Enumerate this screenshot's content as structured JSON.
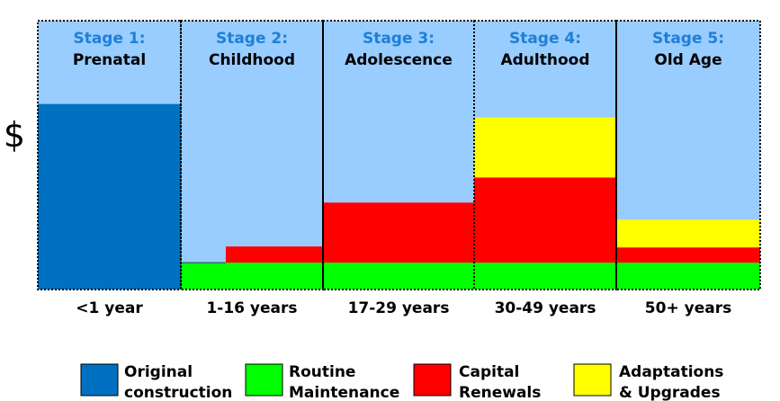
{
  "chart_data": {
    "type": "bar",
    "ylabel": "$",
    "stages": [
      {
        "number_label": "Stage 1:",
        "name": "Prenatal",
        "tick": "<1 year"
      },
      {
        "number_label": "Stage 2:",
        "name": "Childhood",
        "tick": "1-16 years"
      },
      {
        "number_label": "Stage 3:",
        "name": "Adolescence",
        "tick": "17-29 years"
      },
      {
        "number_label": "Stage 4:",
        "name": "Adulthood",
        "tick": "30-49 years"
      },
      {
        "number_label": "Stage 5:",
        "name": "Old Age",
        "tick": "50+ years"
      }
    ],
    "series": [
      {
        "name": "Original construction",
        "color": "#0070c0",
        "values": [
          207,
          0,
          0,
          0,
          0
        ]
      },
      {
        "name": "Routine Maintenance",
        "color": "#00ff00",
        "values": [
          0,
          30,
          30,
          30,
          30
        ]
      },
      {
        "name": "Capital Renewals",
        "color": "#ff0000",
        "values": [
          0,
          18,
          67,
          95,
          17
        ]
      },
      {
        "name": "Adaptations & Upgrades",
        "color": "#ffff00",
        "values": [
          0,
          0,
          0,
          67,
          31
        ]
      }
    ],
    "notes": "Stage 2 renewal band begins partway through the stage; values are relative heights (no numeric y-axis shown).",
    "ylim": [
      0,
      300
    ],
    "background_color": "#99ccff",
    "legend_placement": "bottom"
  },
  "legend": {
    "items": [
      {
        "line1": "Original",
        "line2": "construction"
      },
      {
        "line1": "Routine",
        "line2": "Maintenance"
      },
      {
        "line1": "Capital",
        "line2": "Renewals"
      },
      {
        "line1": "Adaptations",
        "line2": "& Upgrades"
      }
    ]
  }
}
